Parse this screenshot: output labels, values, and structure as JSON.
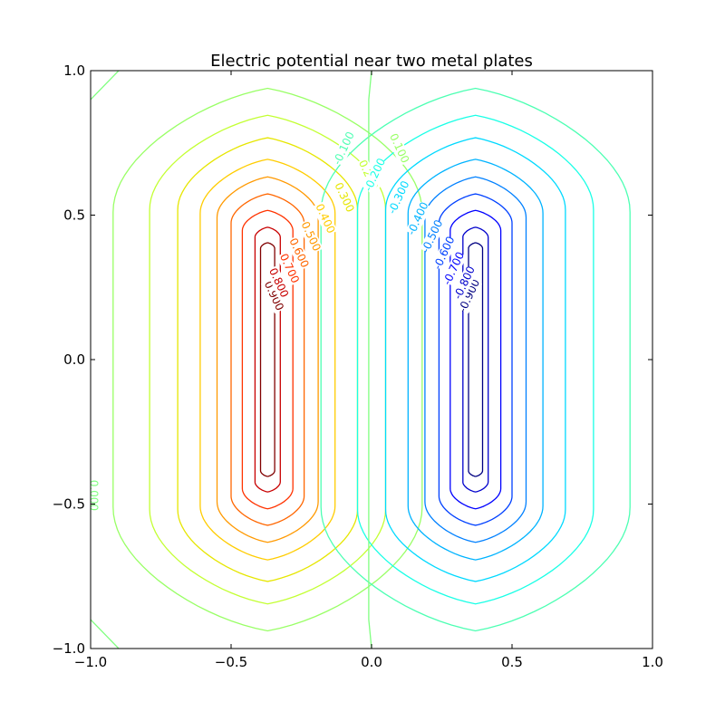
{
  "chart_data": {
    "type": "contour",
    "title": "Electric potential near two metal plates",
    "xlabel": "",
    "ylabel": "",
    "xlim": [
      -1.0,
      1.0
    ],
    "ylim": [
      -1.0,
      1.0
    ],
    "x_ticks": [
      -1.0,
      -0.5,
      0.0,
      0.5,
      1.0
    ],
    "x_tick_labels": [
      "−1.0",
      "−0.5",
      "0.0",
      "0.5",
      "1.0"
    ],
    "y_ticks": [
      -1.0,
      -0.5,
      0.0,
      0.5,
      1.0
    ],
    "y_tick_labels": [
      "−1.0",
      "−0.5",
      "0.0",
      "0.5",
      "1.0"
    ],
    "colormap": "jet",
    "grid": false,
    "levels": [
      {
        "value": 0.9,
        "label": "0.900",
        "color": "#800000",
        "x0": -0.37,
        "y0": -0.4,
        "y1": 0.4,
        "w": 0.025
      },
      {
        "value": 0.8,
        "label": "0.800",
        "color": "#c80000",
        "x0": -0.37,
        "y0": -0.45,
        "y1": 0.45,
        "w": 0.045
      },
      {
        "value": 0.7,
        "label": "0.700",
        "color": "#ff3300",
        "x0": -0.37,
        "y0": -0.5,
        "y1": 0.5,
        "w": 0.09
      },
      {
        "value": 0.6,
        "label": "0.600",
        "color": "#ff6600",
        "x0": -0.37,
        "y0": -0.55,
        "y1": 0.55,
        "w": 0.13
      },
      {
        "value": 0.5,
        "label": "0.500",
        "color": "#ff9900",
        "x0": -0.37,
        "y0": -0.6,
        "y1": 0.6,
        "w": 0.18
      },
      {
        "value": 0.4,
        "label": "0.400",
        "color": "#ffcc00",
        "x0": -0.37,
        "y0": -0.65,
        "y1": 0.65,
        "w": 0.24
      },
      {
        "value": 0.3,
        "label": "0.300",
        "color": "#e6e600",
        "x0": -0.37,
        "y0": -0.71,
        "y1": 0.71,
        "w": 0.32
      },
      {
        "value": 0.2,
        "label": "0.200",
        "color": "#c3ff33",
        "x0": -0.37,
        "y0": -0.77,
        "y1": 0.77,
        "w": 0.42
      },
      {
        "value": 0.1,
        "label": "0.100",
        "color": "#99ff66",
        "x0": -0.37,
        "y0": -0.84,
        "y1": 0.84,
        "w": 0.55
      },
      {
        "value": -0.9,
        "label": "-0.900",
        "color": "#000080",
        "x0": 0.37,
        "y0": -0.4,
        "y1": 0.4,
        "w": 0.025
      },
      {
        "value": -0.8,
        "label": "-0.800",
        "color": "#0000cc",
        "x0": 0.37,
        "y0": -0.45,
        "y1": 0.45,
        "w": 0.045
      },
      {
        "value": -0.7,
        "label": "-0.700",
        "color": "#0000ff",
        "x0": 0.37,
        "y0": -0.5,
        "y1": 0.5,
        "w": 0.09
      },
      {
        "value": -0.6,
        "label": "-0.600",
        "color": "#0040ff",
        "x0": 0.37,
        "y0": -0.55,
        "y1": 0.55,
        "w": 0.13
      },
      {
        "value": -0.5,
        "label": "-0.500",
        "color": "#0080ff",
        "x0": 0.37,
        "y0": -0.6,
        "y1": 0.6,
        "w": 0.18
      },
      {
        "value": -0.4,
        "label": "-0.400",
        "color": "#00b3ff",
        "x0": 0.37,
        "y0": -0.65,
        "y1": 0.65,
        "w": 0.24
      },
      {
        "value": -0.3,
        "label": "-0.300",
        "color": "#00d9ff",
        "x0": 0.37,
        "y0": -0.71,
        "y1": 0.71,
        "w": 0.32
      },
      {
        "value": -0.2,
        "label": "-0.200",
        "color": "#19ffe6",
        "x0": 0.37,
        "y0": -0.77,
        "y1": 0.77,
        "w": 0.42
      },
      {
        "value": -0.1,
        "label": "-0.100",
        "color": "#4dffb3",
        "x0": 0.37,
        "y0": -0.84,
        "y1": 0.84,
        "w": 0.55
      }
    ],
    "zero_level": {
      "value": 0.0,
      "label": "0.000",
      "color": "#80ff80"
    }
  }
}
